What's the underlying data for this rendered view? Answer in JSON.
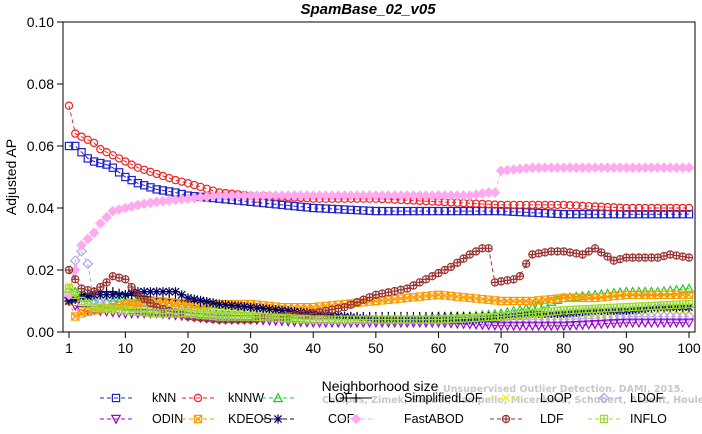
{
  "chart_data": {
    "type": "line",
    "title": "SpamBase_02_v05",
    "xlabel": "Neighborhood size",
    "ylabel": "Adjusted AP",
    "xlim": [
      1,
      100
    ],
    "ylim": [
      0,
      0.1
    ],
    "xticks": [
      1,
      10,
      20,
      30,
      40,
      50,
      60,
      70,
      80,
      90,
      100
    ],
    "yticks": [
      "0.00",
      "0.02",
      "0.04",
      "0.06",
      "0.08",
      "0.10"
    ],
    "grid": false,
    "legend_position": "bottom",
    "series": [
      {
        "name": "kNN",
        "color": "#2222cc",
        "marker": "square",
        "dashed": true,
        "points": [
          [
            1,
            0.06
          ],
          [
            2,
            0.06
          ],
          [
            3,
            0.058
          ],
          [
            4,
            0.056
          ],
          [
            5,
            0.055
          ],
          [
            7,
            0.054
          ],
          [
            8,
            0.053
          ],
          [
            10,
            0.05
          ],
          [
            12,
            0.048
          ],
          [
            15,
            0.046
          ],
          [
            18,
            0.045
          ],
          [
            20,
            0.044
          ],
          [
            25,
            0.043
          ],
          [
            30,
            0.042
          ],
          [
            35,
            0.041
          ],
          [
            40,
            0.04
          ],
          [
            50,
            0.039
          ],
          [
            60,
            0.039
          ],
          [
            70,
            0.039
          ],
          [
            80,
            0.038
          ],
          [
            90,
            0.038
          ],
          [
            100,
            0.038
          ]
        ]
      },
      {
        "name": "kNNW",
        "color": "#ee2222",
        "marker": "circle",
        "dashed": true,
        "points": [
          [
            1,
            0.073
          ],
          [
            2,
            0.064
          ],
          [
            3,
            0.063
          ],
          [
            4,
            0.062
          ],
          [
            5,
            0.061
          ],
          [
            6,
            0.059
          ],
          [
            8,
            0.057
          ],
          [
            10,
            0.055
          ],
          [
            12,
            0.053
          ],
          [
            15,
            0.051
          ],
          [
            18,
            0.049
          ],
          [
            20,
            0.048
          ],
          [
            25,
            0.045
          ],
          [
            30,
            0.044
          ],
          [
            31,
            0.043
          ],
          [
            32,
            0.044
          ],
          [
            40,
            0.043
          ],
          [
            50,
            0.043
          ],
          [
            60,
            0.042
          ],
          [
            70,
            0.041
          ],
          [
            80,
            0.041
          ],
          [
            90,
            0.04
          ],
          [
            100,
            0.04
          ]
        ]
      },
      {
        "name": "LOF",
        "color": "#22cc22",
        "marker": "triangle-up",
        "dashed": true,
        "points": [
          [
            1,
            0.014
          ],
          [
            3,
            0.012
          ],
          [
            5,
            0.01
          ],
          [
            10,
            0.01
          ],
          [
            15,
            0.009
          ],
          [
            20,
            0.008
          ],
          [
            25,
            0.007
          ],
          [
            30,
            0.006
          ],
          [
            35,
            0.005
          ],
          [
            40,
            0.004
          ],
          [
            45,
            0.004
          ],
          [
            50,
            0.004
          ],
          [
            55,
            0.004
          ],
          [
            60,
            0.005
          ],
          [
            65,
            0.005
          ],
          [
            70,
            0.006
          ],
          [
            75,
            0.008
          ],
          [
            80,
            0.011
          ],
          [
            85,
            0.012
          ],
          [
            90,
            0.013
          ],
          [
            95,
            0.013
          ],
          [
            100,
            0.014
          ]
        ]
      },
      {
        "name": "SimplifiedLOF",
        "color": "#000000",
        "marker": "plus",
        "dashed": false,
        "points": [
          [
            1,
            0.01
          ],
          [
            3,
            0.012
          ],
          [
            5,
            0.013
          ],
          [
            8,
            0.013
          ],
          [
            10,
            0.012
          ],
          [
            15,
            0.011
          ],
          [
            20,
            0.01
          ],
          [
            25,
            0.009
          ],
          [
            30,
            0.008
          ],
          [
            35,
            0.007
          ],
          [
            40,
            0.006
          ],
          [
            45,
            0.005
          ],
          [
            50,
            0.005
          ],
          [
            55,
            0.005
          ],
          [
            60,
            0.005
          ],
          [
            65,
            0.005
          ],
          [
            70,
            0.005
          ],
          [
            75,
            0.006
          ],
          [
            80,
            0.006
          ],
          [
            85,
            0.007
          ],
          [
            90,
            0.007
          ],
          [
            95,
            0.008
          ],
          [
            100,
            0.008
          ]
        ]
      },
      {
        "name": "LoOP",
        "color": "#ffee00",
        "marker": "x",
        "dashed": true,
        "points": [
          [
            1,
            0.015
          ],
          [
            2,
            0.011
          ],
          [
            3,
            0.008
          ],
          [
            5,
            0.008
          ],
          [
            10,
            0.008
          ],
          [
            15,
            0.007
          ],
          [
            20,
            0.007
          ],
          [
            30,
            0.006
          ],
          [
            40,
            0.005
          ],
          [
            50,
            0.004
          ],
          [
            60,
            0.004
          ],
          [
            70,
            0.005
          ],
          [
            80,
            0.005
          ],
          [
            90,
            0.006
          ],
          [
            100,
            0.007
          ]
        ]
      },
      {
        "name": "LDOF",
        "color": "#aaaaee",
        "marker": "diamond",
        "dashed": true,
        "points": [
          [
            1,
            0.011
          ],
          [
            2,
            0.023
          ],
          [
            3,
            0.026
          ],
          [
            4,
            0.022
          ],
          [
            5,
            0.01
          ],
          [
            7,
            0.009
          ],
          [
            10,
            0.008
          ],
          [
            15,
            0.007
          ],
          [
            20,
            0.006
          ],
          [
            30,
            0.005
          ],
          [
            40,
            0.004
          ],
          [
            50,
            0.004
          ],
          [
            60,
            0.004
          ],
          [
            70,
            0.004
          ],
          [
            80,
            0.004
          ],
          [
            90,
            0.005
          ],
          [
            100,
            0.005
          ]
        ]
      },
      {
        "name": "ODIN",
        "color": "#9900cc",
        "marker": "triangle-down",
        "dashed": true,
        "points": [
          [
            1,
            0.01
          ],
          [
            3,
            0.007
          ],
          [
            5,
            0.007
          ],
          [
            10,
            0.006
          ],
          [
            15,
            0.006
          ],
          [
            20,
            0.005
          ],
          [
            25,
            0.004
          ],
          [
            30,
            0.004
          ],
          [
            40,
            0.003
          ],
          [
            50,
            0.003
          ],
          [
            60,
            0.003
          ],
          [
            70,
            0.002
          ],
          [
            80,
            0.002
          ],
          [
            90,
            0.003
          ],
          [
            100,
            0.003
          ]
        ]
      },
      {
        "name": "KDEOS",
        "color": "#ff9900",
        "marker": "square-x",
        "dashed": true,
        "points": [
          [
            1,
            0.01
          ],
          [
            2,
            0.005
          ],
          [
            3,
            0.006
          ],
          [
            5,
            0.007
          ],
          [
            8,
            0.008
          ],
          [
            10,
            0.009
          ],
          [
            15,
            0.01
          ],
          [
            20,
            0.009
          ],
          [
            25,
            0.009
          ],
          [
            30,
            0.009
          ],
          [
            35,
            0.008
          ],
          [
            40,
            0.008
          ],
          [
            45,
            0.009
          ],
          [
            50,
            0.01
          ],
          [
            55,
            0.011
          ],
          [
            60,
            0.012
          ],
          [
            65,
            0.011
          ],
          [
            70,
            0.01
          ],
          [
            75,
            0.01
          ],
          [
            80,
            0.011
          ],
          [
            85,
            0.011
          ],
          [
            90,
            0.012
          ],
          [
            95,
            0.012
          ],
          [
            100,
            0.012
          ]
        ]
      },
      {
        "name": "COF",
        "color": "#000066",
        "marker": "star",
        "dashed": true,
        "points": [
          [
            1,
            0.01
          ],
          [
            3,
            0.011
          ],
          [
            5,
            0.012
          ],
          [
            10,
            0.012
          ],
          [
            12,
            0.013
          ],
          [
            15,
            0.013
          ],
          [
            18,
            0.013
          ],
          [
            20,
            0.011
          ],
          [
            25,
            0.009
          ],
          [
            30,
            0.008
          ],
          [
            35,
            0.007
          ],
          [
            40,
            0.006
          ],
          [
            45,
            0.005
          ],
          [
            50,
            0.004
          ],
          [
            55,
            0.004
          ],
          [
            60,
            0.004
          ],
          [
            65,
            0.004
          ],
          [
            70,
            0.005
          ],
          [
            75,
            0.006
          ],
          [
            80,
            0.006
          ],
          [
            85,
            0.007
          ],
          [
            90,
            0.007
          ],
          [
            95,
            0.008
          ],
          [
            100,
            0.008
          ]
        ]
      },
      {
        "name": "FastABOD",
        "color": "#ffaaee",
        "marker": "diamond-filled",
        "dashed": true,
        "points": [
          [
            1,
            0.012
          ],
          [
            2,
            0.02
          ],
          [
            3,
            0.028
          ],
          [
            4,
            0.03
          ],
          [
            5,
            0.032
          ],
          [
            6,
            0.035
          ],
          [
            8,
            0.039
          ],
          [
            10,
            0.04
          ],
          [
            12,
            0.041
          ],
          [
            15,
            0.042
          ],
          [
            20,
            0.043
          ],
          [
            25,
            0.044
          ],
          [
            30,
            0.044
          ],
          [
            40,
            0.044
          ],
          [
            50,
            0.044
          ],
          [
            60,
            0.044
          ],
          [
            65,
            0.044
          ],
          [
            68,
            0.045
          ],
          [
            69,
            0.045
          ],
          [
            70,
            0.052
          ],
          [
            75,
            0.053
          ],
          [
            80,
            0.053
          ],
          [
            90,
            0.053
          ],
          [
            100,
            0.053
          ]
        ]
      },
      {
        "name": "LDF",
        "color": "#993333",
        "marker": "circle-plus",
        "dashed": true,
        "points": [
          [
            1,
            0.02
          ],
          [
            3,
            0.014
          ],
          [
            5,
            0.013
          ],
          [
            7,
            0.016
          ],
          [
            8,
            0.018
          ],
          [
            10,
            0.017
          ],
          [
            12,
            0.012
          ],
          [
            15,
            0.008
          ],
          [
            20,
            0.005
          ],
          [
            25,
            0.004
          ],
          [
            30,
            0.004
          ],
          [
            35,
            0.005
          ],
          [
            40,
            0.006
          ],
          [
            45,
            0.008
          ],
          [
            50,
            0.012
          ],
          [
            55,
            0.014
          ],
          [
            60,
            0.019
          ],
          [
            62,
            0.021
          ],
          [
            65,
            0.025
          ],
          [
            67,
            0.027
          ],
          [
            68,
            0.027
          ],
          [
            69,
            0.016
          ],
          [
            72,
            0.017
          ],
          [
            73,
            0.018
          ],
          [
            74,
            0.022
          ],
          [
            75,
            0.025
          ],
          [
            78,
            0.026
          ],
          [
            80,
            0.026
          ],
          [
            83,
            0.025
          ],
          [
            85,
            0.027
          ],
          [
            88,
            0.023
          ],
          [
            90,
            0.024
          ],
          [
            95,
            0.024
          ],
          [
            97,
            0.025
          ],
          [
            100,
            0.024
          ]
        ]
      },
      {
        "name": "INFLO",
        "color": "#99dd33",
        "marker": "square-plus",
        "dashed": true,
        "points": [
          [
            1,
            0.014
          ],
          [
            3,
            0.01
          ],
          [
            5,
            0.008
          ],
          [
            10,
            0.007
          ],
          [
            15,
            0.006
          ],
          [
            20,
            0.006
          ],
          [
            25,
            0.005
          ],
          [
            30,
            0.005
          ],
          [
            40,
            0.004
          ],
          [
            50,
            0.004
          ],
          [
            60,
            0.004
          ],
          [
            70,
            0.005
          ],
          [
            80,
            0.007
          ],
          [
            90,
            0.008
          ],
          [
            100,
            0.009
          ]
        ]
      }
    ]
  },
  "watermark": {
    "line1": "Unsupervised Outlier Detection. DAMI, 2015.",
    "line2": "Campos, Zimek, Sander, Campello, Micenkova, Schubert, Assent, Houle"
  }
}
